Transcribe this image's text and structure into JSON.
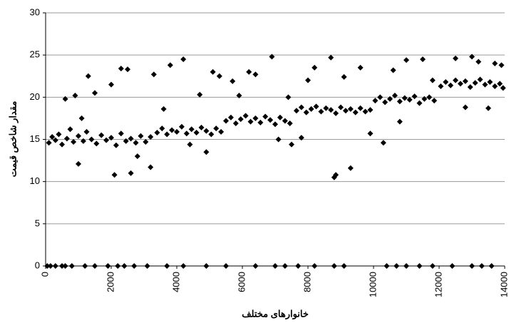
{
  "chart_data": {
    "type": "scatter",
    "x_label": "خانوارهای مختلف",
    "y_label": "مقدار شاخص قیمت",
    "color": "#000000",
    "grid": true,
    "xlim": [
      0,
      14000
    ],
    "xticks": [
      0,
      2000,
      4000,
      6000,
      8000,
      10000,
      12000,
      14000
    ],
    "ylim": [
      0,
      30
    ],
    "yticks": [
      0,
      5,
      10,
      15,
      20,
      25,
      30
    ],
    "x": [
      100,
      200,
      300,
      400,
      500,
      650,
      750,
      850,
      1000,
      1150,
      1250,
      1400,
      1550,
      1700,
      1850,
      2000,
      2150,
      2300,
      2450,
      2600,
      2750,
      2900,
      3050,
      3200,
      600,
      900,
      1300,
      1500,
      2300,
      2500,
      2000,
      2100,
      2600,
      3200,
      1000,
      3300,
      1100,
      2800,
      3400,
      3550,
      3700,
      3850,
      4000,
      4150,
      4300,
      4450,
      4600,
      4750,
      4900,
      5050,
      5200,
      5350,
      3800,
      4200,
      4700,
      5100,
      3600,
      4900,
      4400,
      5300,
      5500,
      5650,
      5800,
      5950,
      6100,
      6250,
      6400,
      6550,
      6700,
      6850,
      7000,
      7150,
      7300,
      7450,
      5700,
      6400,
      6900,
      7100,
      6200,
      7400,
      7500,
      5900,
      7650,
      7800,
      7950,
      8100,
      8250,
      8400,
      8550,
      8700,
      8850,
      9000,
      9150,
      9300,
      9450,
      9600,
      9750,
      9900,
      8200,
      8700,
      8800,
      8850,
      9300,
      9600,
      8000,
      9900,
      9100,
      7800,
      10050,
      10200,
      10350,
      10500,
      10650,
      10800,
      10950,
      11100,
      11250,
      11400,
      11550,
      11700,
      11850,
      10300,
      10600,
      11000,
      11500,
      10800,
      11800,
      12050,
      12200,
      12350,
      12500,
      12650,
      12800,
      12950,
      13100,
      13250,
      13400,
      13550,
      13700,
      13850,
      13950,
      12500,
      13000,
      13200,
      12800,
      13500,
      13900,
      13700,
      50,
      150,
      300,
      500,
      600,
      800,
      1200,
      1500,
      1900,
      2200,
      2400,
      2700,
      3100,
      3700,
      4200,
      4900,
      5500,
      6400,
      7000,
      7300,
      7700,
      8200,
      8800,
      9100,
      10400,
      10700,
      11000,
      11400,
      11800,
      12400,
      13000,
      13300,
      13600
    ],
    "values": [
      14.6,
      15.3,
      14.9,
      15.6,
      14.4,
      15.1,
      16.2,
      14.7,
      15.4,
      14.8,
      15.9,
      15.0,
      14.5,
      15.5,
      14.9,
      15.2,
      14.3,
      15.7,
      14.8,
      15.1,
      14.6,
      15.4,
      14.7,
      15.3,
      19.8,
      20.2,
      22.5,
      20.5,
      23.4,
      23.3,
      21.5,
      10.8,
      11,
      11.7,
      12.1,
      22.7,
      17.5,
      13,
      15.8,
      16.3,
      15.6,
      16.1,
      15.9,
      16.5,
      15.7,
      16.2,
      15.8,
      16.4,
      16.0,
      15.6,
      16.3,
      15.9,
      23.8,
      24.5,
      20.3,
      23,
      18.6,
      13.5,
      14.4,
      22.5,
      17.2,
      17.6,
      16.9,
      17.4,
      17.8,
      17.1,
      17.5,
      17.0,
      17.7,
      17.3,
      16.8,
      17.6,
      17.2,
      16.9,
      21.9,
      22.7,
      24.8,
      15,
      23,
      20,
      14.4,
      20.2,
      18.4,
      18.8,
      18.2,
      18.6,
      18.9,
      18.3,
      18.7,
      18.5,
      18.1,
      18.8,
      18.4,
      18.6,
      18.2,
      18.7,
      18.3,
      18.5,
      23.5,
      24.7,
      10.5,
      10.8,
      11.6,
      23.5,
      22,
      15.7,
      22.4,
      15.2,
      19.6,
      20.0,
      19.4,
      19.8,
      20.2,
      19.5,
      19.9,
      19.7,
      20.1,
      19.3,
      19.8,
      20.0,
      19.6,
      14.6,
      23.2,
      24.4,
      24.5,
      17.1,
      22,
      21.3,
      21.8,
      21.4,
      22.0,
      21.6,
      21.9,
      21.2,
      21.7,
      22.1,
      21.5,
      21.8,
      21.3,
      21.6,
      21.1,
      24.6,
      24.8,
      24.2,
      18.8,
      18.7,
      23.8,
      24,
      0,
      0,
      0,
      0,
      0,
      0,
      0,
      0,
      0,
      0,
      0,
      0,
      0,
      0,
      0,
      0,
      0,
      0,
      0,
      0,
      0,
      0,
      0,
      0,
      0,
      0,
      0,
      0,
      0,
      0,
      0,
      0,
      0
    ]
  }
}
